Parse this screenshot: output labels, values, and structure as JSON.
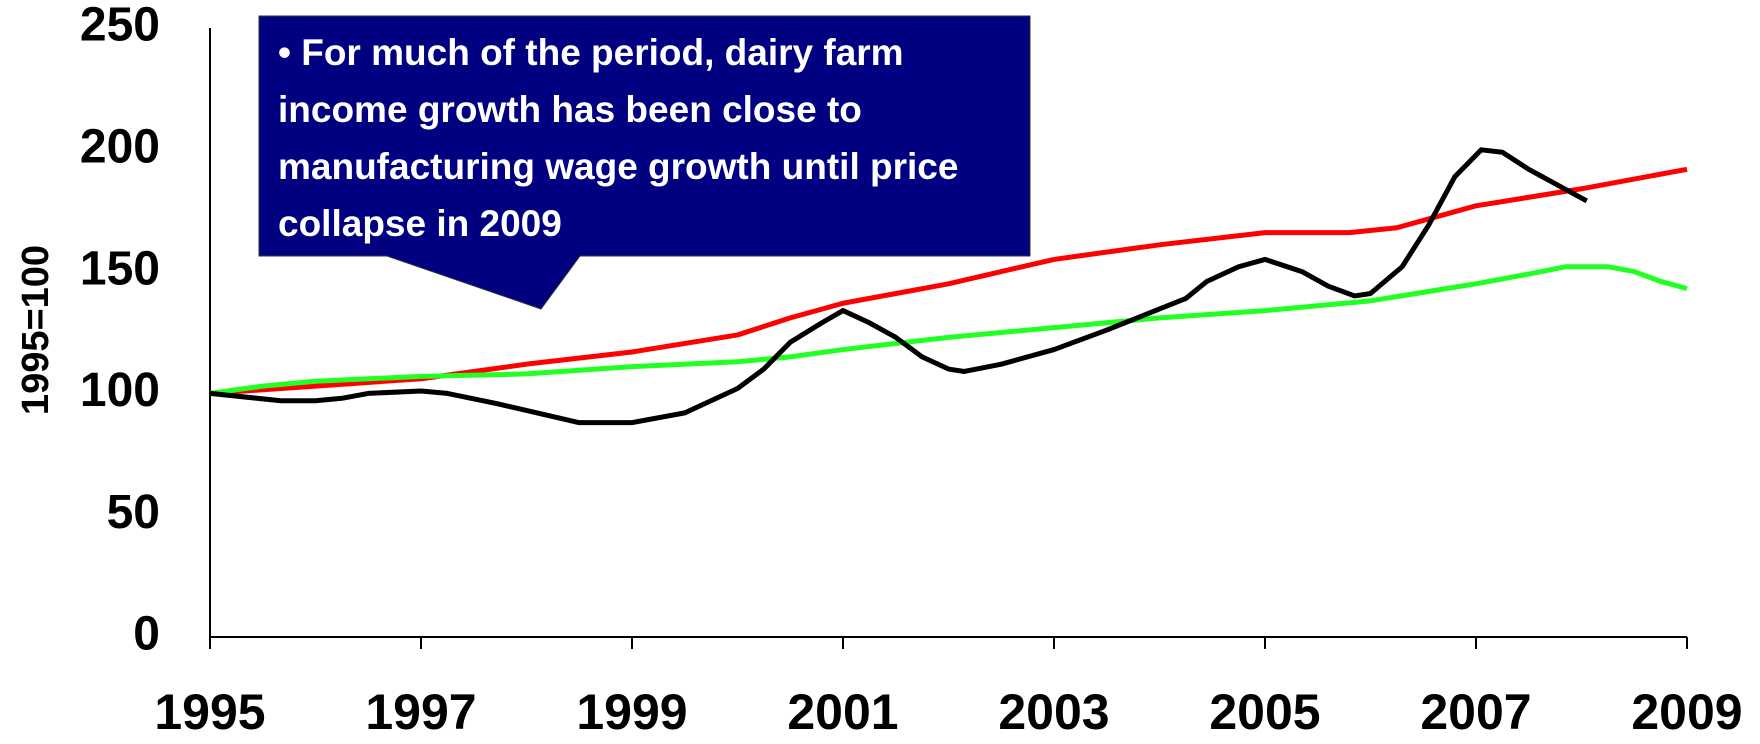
{
  "chart_data": {
    "type": "line",
    "annotation": "• For much of the period, dairy farm income growth has been close to manufacturing wage growth until price collapse in 2009",
    "ylabel": "1995=100",
    "xlim": [
      1995,
      2009
    ],
    "xticks": [
      1995,
      1997,
      1999,
      2001,
      2003,
      2005,
      2007,
      2009
    ],
    "ylim": [
      0,
      250
    ],
    "yticks": [
      0,
      50,
      100,
      150,
      200,
      250
    ],
    "grid": false,
    "series": [
      {
        "color": "#ff0000",
        "x": [
          1995,
          1996,
          1997,
          1998,
          1999,
          2000,
          2000.5,
          2001,
          2002,
          2003,
          2004,
          2005,
          2005.8,
          2006.25,
          2007,
          2008,
          2009
        ],
        "values": [
          100,
          103,
          106,
          112,
          117,
          124,
          131,
          137,
          145,
          155,
          161,
          166,
          166,
          168,
          177,
          184,
          192
        ]
      },
      {
        "color": "#22ff22",
        "x": [
          1995,
          1995.5,
          1996,
          1997,
          1998,
          1999,
          2000,
          2000.5,
          2001,
          2002,
          2003,
          2004,
          2005,
          2006,
          2007,
          2007.5,
          2007.85,
          2008.25,
          2008.5,
          2008.75,
          2009
        ],
        "values": [
          100,
          103,
          105,
          107,
          108,
          111,
          113,
          115,
          118,
          123,
          127,
          131,
          134,
          138,
          145,
          149,
          152,
          152,
          150,
          146,
          143
        ]
      },
      {
        "color": "#000000",
        "x": [
          1995,
          1995.67,
          1996,
          1996.25,
          1996.5,
          1997,
          1997.25,
          1997.7,
          1998.5,
          1999,
          1999.5,
          2000,
          2000.25,
          2000.5,
          2000.8,
          2001,
          2001.25,
          2001.5,
          2001.75,
          2002,
          2002.15,
          2002.5,
          2003,
          2003.5,
          2004.25,
          2004.45,
          2004.75,
          2005,
          2005.35,
          2005.6,
          2005.85,
          2006,
          2006.3,
          2006.55,
          2006.8,
          2007.05,
          2007.25,
          2007.5,
          2008.05
        ],
        "values": [
          100,
          97,
          97,
          98,
          100,
          101,
          100,
          96,
          88,
          88,
          92,
          102,
          110,
          121,
          129,
          134,
          129,
          123,
          115,
          110,
          109,
          112,
          118,
          126,
          139,
          146,
          152,
          155,
          150,
          144,
          140,
          141,
          152,
          169,
          189,
          200,
          199,
          192,
          179
        ]
      }
    ]
  }
}
